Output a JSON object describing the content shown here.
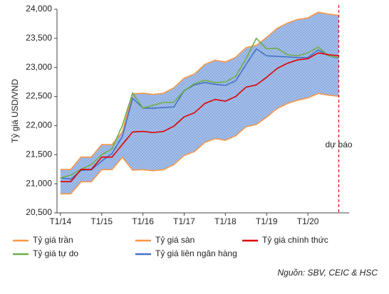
{
  "chart_data": {
    "type": "line",
    "y_label": "Tỷ giá USD/VND",
    "source": "Nguồn: SBV, CEIC & HSC",
    "annotation": {
      "text": "dự báo",
      "x": "2020-10"
    },
    "x": [
      "2014-01",
      "2014-04",
      "2014-07",
      "2014-10",
      "2015-01",
      "2015-04",
      "2015-07",
      "2015-10",
      "2016-01",
      "2016-04",
      "2016-07",
      "2016-10",
      "2017-01",
      "2017-04",
      "2017-07",
      "2017-10",
      "2018-01",
      "2018-04",
      "2018-07",
      "2018-10",
      "2019-01",
      "2019-04",
      "2019-07",
      "2019-10",
      "2020-01",
      "2020-04",
      "2020-07",
      "2020-10"
    ],
    "xlim": [
      "2013-12",
      "2021-01"
    ],
    "xticks": [
      {
        "value": "2014-01",
        "label": "T1/14"
      },
      {
        "value": "2015-01",
        "label": "T1/15"
      },
      {
        "value": "2016-01",
        "label": "T1/16"
      },
      {
        "value": "2017-01",
        "label": "T1/17"
      },
      {
        "value": "2018-01",
        "label": "T1/18"
      },
      {
        "value": "2019-01",
        "label": "T1/19"
      },
      {
        "value": "2020-01",
        "label": "T1/20"
      }
    ],
    "ylim": [
      20500,
      24000
    ],
    "yticks": [
      {
        "value": 20500,
        "label": "20,500"
      },
      {
        "value": 21000,
        "label": "21,000"
      },
      {
        "value": 21500,
        "label": "21,500"
      },
      {
        "value": 22000,
        "label": "22,000"
      },
      {
        "value": 22500,
        "label": "22,500"
      },
      {
        "value": 23000,
        "label": "23,000"
      },
      {
        "value": 23500,
        "label": "23,500"
      },
      {
        "value": 24000,
        "label": "24,000"
      }
    ],
    "series": [
      {
        "name": "Tỷ giá trần",
        "color": "#f79646",
        "values": [
          21246,
          21246,
          21458,
          21458,
          21673,
          21673,
          21890,
          22547,
          22557,
          22536,
          22557,
          22650,
          22815,
          22887,
          23051,
          23124,
          23093,
          23175,
          23340,
          23381,
          23515,
          23669,
          23762,
          23824,
          23851,
          23948,
          23917,
          23896
        ]
      },
      {
        "name": "Tỷ giá sàn",
        "color": "#f79646",
        "values": [
          20826,
          20826,
          21034,
          21034,
          21243,
          21243,
          21456,
          21233,
          21243,
          21224,
          21243,
          21330,
          21486,
          21553,
          21709,
          21777,
          21747,
          21825,
          21980,
          22019,
          22145,
          22291,
          22378,
          22436,
          22475,
          22553,
          22523,
          22504
        ]
      },
      {
        "name": "Tỷ giá chính thức",
        "color": "#e00000",
        "values": [
          21036,
          21036,
          21246,
          21246,
          21458,
          21458,
          21673,
          21890,
          21900,
          21880,
          21900,
          21990,
          22150,
          22220,
          22380,
          22450,
          22420,
          22500,
          22660,
          22700,
          22830,
          22980,
          23070,
          23130,
          23150,
          23250,
          23220,
          23200
        ]
      },
      {
        "name": "Tỷ giá tự do",
        "color": "#70ad47",
        "values": [
          21100,
          21150,
          21250,
          21330,
          21500,
          21600,
          22000,
          22560,
          22300,
          22350,
          22400,
          22400,
          22600,
          22720,
          22780,
          22740,
          22750,
          22850,
          23150,
          23500,
          23320,
          23330,
          23220,
          23200,
          23250,
          23350,
          23200,
          23170
        ]
      },
      {
        "name": "Tỷ giá liên ngân hàng",
        "color": "#4472c4",
        "values": [
          21100,
          21080,
          21230,
          21240,
          21390,
          21520,
          21810,
          22470,
          22300,
          22300,
          22310,
          22320,
          22600,
          22700,
          22740,
          22710,
          22690,
          22770,
          23050,
          23320,
          23200,
          23190,
          23180,
          23170,
          23170,
          23300,
          23200,
          23160
        ]
      }
    ]
  }
}
